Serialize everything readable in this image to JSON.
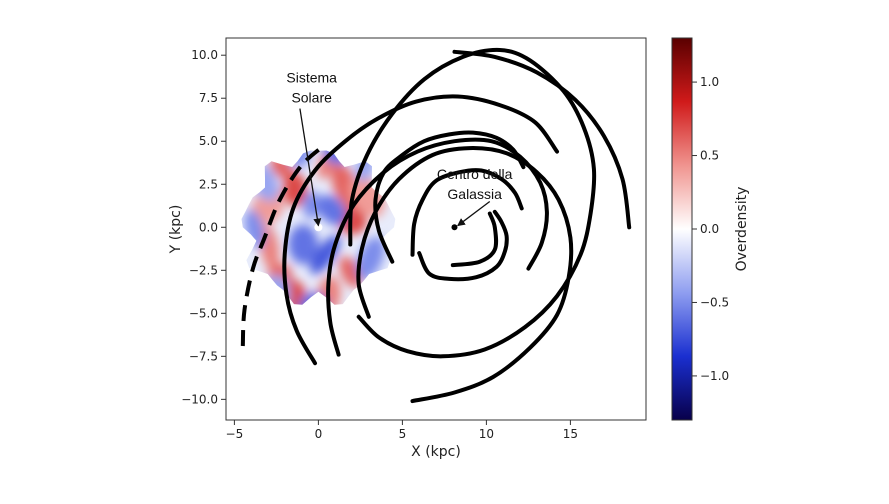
{
  "chart_data": {
    "type": "scatter",
    "title": "",
    "xlabel": "X (kpc)",
    "ylabel": "Y (kpc)",
    "xlim": [
      -5.5,
      19.5
    ],
    "ylim": [
      -11.2,
      11.0
    ],
    "x_ticks": [
      -5,
      0,
      5,
      10,
      15
    ],
    "x_tick_labels": [
      "−5",
      "0",
      "5",
      "10",
      "15"
    ],
    "y_ticks": [
      10.0,
      7.5,
      5.0,
      2.5,
      0.0,
      -2.5,
      -5.0,
      -7.5,
      -10.0
    ],
    "y_tick_labels": [
      "10.0",
      "7.5",
      "5.0",
      "2.5",
      "0.0",
      "−2.5",
      "−5.0",
      "−7.5",
      "−10.0"
    ],
    "grid": false,
    "colorbar": {
      "label": "Overdensity",
      "range": [
        -1.3,
        1.3
      ],
      "ticks": [
        1.0,
        0.5,
        0.0,
        -0.5,
        -1.0
      ],
      "tick_labels": [
        "1.0",
        "0.5",
        "0.0",
        "−0.5",
        "−1.0"
      ],
      "colormap": [
        "#08004a",
        "#1a2fd0",
        "#8f9ef0",
        "#ffffff",
        "#f0948f",
        "#d01a1a",
        "#5a0000"
      ]
    },
    "sun": {
      "x": 0.0,
      "y": 0.0
    },
    "galactic_center": {
      "x": 8.1,
      "y": 0.0
    },
    "annotations": [
      {
        "id": "sun",
        "lines": [
          "Sistema",
          "Solare"
        ],
        "text_x": -0.4,
        "text_y": 8.4,
        "arrow_from": [
          -1.1,
          6.9
        ],
        "arrow_to": [
          0.0,
          0.1
        ]
      },
      {
        "id": "center",
        "lines": [
          "Centro della",
          "Galassia"
        ],
        "text_x": 9.3,
        "text_y": 2.8,
        "arrow_from": [
          10.2,
          1.5
        ],
        "arrow_to": [
          8.3,
          0.1
        ]
      }
    ],
    "spiral_arms": [
      {
        "name": "arm-outer-dashed",
        "style": "dashed",
        "points": [
          [
            -4.5,
            -6.9
          ],
          [
            -4.4,
            -4.8
          ],
          [
            -3.9,
            -2.4
          ],
          [
            -3.2,
            -0.6
          ],
          [
            -2.3,
            1.6
          ],
          [
            -1.0,
            3.6
          ],
          [
            0.4,
            4.8
          ]
        ]
      },
      {
        "name": "arm-1",
        "style": "solid",
        "points": [
          [
            -0.2,
            -7.9
          ],
          [
            -1.3,
            -6.0
          ],
          [
            -1.9,
            -3.9
          ],
          [
            -2.0,
            -1.5
          ],
          [
            -1.5,
            1.1
          ],
          [
            -0.2,
            3.3
          ],
          [
            1.6,
            5.0
          ],
          [
            3.5,
            6.3
          ],
          [
            5.8,
            7.3
          ],
          [
            8.3,
            7.6
          ],
          [
            10.8,
            7.1
          ],
          [
            12.9,
            6.1
          ],
          [
            14.2,
            4.4
          ]
        ]
      },
      {
        "name": "arm-2",
        "style": "solid",
        "points": [
          [
            4.4,
            -2.0
          ],
          [
            3.6,
            -0.2
          ],
          [
            3.4,
            1.6
          ],
          [
            3.9,
            3.2
          ],
          [
            5.0,
            4.2
          ],
          [
            6.3,
            5.0
          ],
          [
            7.8,
            5.4
          ],
          [
            9.2,
            5.5
          ],
          [
            10.6,
            5.2
          ],
          [
            11.6,
            4.5
          ],
          [
            12.2,
            3.5
          ]
        ]
      },
      {
        "name": "arm-3",
        "style": "solid",
        "points": [
          [
            5.6,
            -1.6
          ],
          [
            5.7,
            0.2
          ],
          [
            6.2,
            1.6
          ],
          [
            7.0,
            2.7
          ],
          [
            8.4,
            3.2
          ],
          [
            9.7,
            3.3
          ],
          [
            10.9,
            2.8
          ],
          [
            11.7,
            2.0
          ],
          [
            12.1,
            1.1
          ]
        ]
      },
      {
        "name": "arm-4",
        "style": "solid",
        "points": [
          [
            6.0,
            -1.5
          ],
          [
            6.6,
            -2.7
          ],
          [
            7.8,
            -3.0
          ],
          [
            9.4,
            -2.9
          ],
          [
            10.6,
            -2.3
          ],
          [
            11.1,
            -1.4
          ],
          [
            11.2,
            -0.5
          ],
          [
            10.9,
            0.3
          ],
          [
            10.5,
            0.9
          ]
        ]
      },
      {
        "name": "arm-5",
        "style": "solid",
        "points": [
          [
            8.0,
            -2.2
          ],
          [
            9.6,
            -2.0
          ],
          [
            10.5,
            -1.3
          ],
          [
            10.5,
            0.0
          ],
          [
            10.2,
            0.8
          ]
        ]
      },
      {
        "name": "arm-6",
        "style": "solid",
        "points": [
          [
            1.2,
            -7.4
          ],
          [
            0.7,
            -5.5
          ],
          [
            0.6,
            -3.2
          ],
          [
            1.0,
            -1.0
          ],
          [
            2.1,
            1.3
          ],
          [
            3.9,
            3.2
          ],
          [
            5.9,
            4.4
          ],
          [
            8.1,
            5.0
          ],
          [
            10.3,
            5.0
          ],
          [
            12.0,
            4.1
          ],
          [
            13.2,
            2.6
          ],
          [
            13.6,
            0.9
          ],
          [
            13.3,
            -0.9
          ],
          [
            12.5,
            -2.4
          ]
        ]
      },
      {
        "name": "arm-7",
        "style": "solid",
        "points": [
          [
            3.0,
            -5.2
          ],
          [
            2.4,
            -3.3
          ],
          [
            2.6,
            -1.2
          ],
          [
            3.4,
            0.9
          ],
          [
            4.8,
            2.8
          ],
          [
            6.8,
            4.2
          ],
          [
            9.0,
            4.6
          ],
          [
            11.2,
            4.3
          ],
          [
            13.0,
            3.2
          ],
          [
            14.3,
            1.6
          ],
          [
            15.0,
            -0.6
          ],
          [
            14.9,
            -2.9
          ],
          [
            14.2,
            -5.1
          ],
          [
            12.6,
            -7.0
          ],
          [
            10.4,
            -8.7
          ],
          [
            8.1,
            -9.6
          ],
          [
            5.6,
            -10.1
          ]
        ]
      },
      {
        "name": "arm-8",
        "style": "solid",
        "points": [
          [
            1.9,
            -1.0
          ],
          [
            2.0,
            1.6
          ],
          [
            2.9,
            4.2
          ],
          [
            4.4,
            6.6
          ],
          [
            6.3,
            8.6
          ],
          [
            8.6,
            9.9
          ],
          [
            10.8,
            10.3
          ],
          [
            12.6,
            9.7
          ],
          [
            14.6,
            7.9
          ],
          [
            15.8,
            5.8
          ],
          [
            16.4,
            3.4
          ],
          [
            16.2,
            0.8
          ],
          [
            15.6,
            -1.6
          ],
          [
            14.2,
            -4.0
          ],
          [
            12.3,
            -5.8
          ],
          [
            9.9,
            -7.1
          ],
          [
            7.4,
            -7.5
          ],
          [
            5.3,
            -7.2
          ],
          [
            3.6,
            -6.4
          ],
          [
            2.4,
            -5.2
          ]
        ]
      },
      {
        "name": "arm-9",
        "style": "solid",
        "points": [
          [
            8.1,
            10.2
          ],
          [
            10.5,
            9.9
          ],
          [
            13.0,
            9.0
          ],
          [
            15.3,
            7.4
          ],
          [
            17.0,
            5.3
          ],
          [
            18.1,
            2.8
          ],
          [
            18.5,
            0.0
          ]
        ]
      }
    ],
    "overdensity_patches": [
      {
        "x": -2.2,
        "y": 3.5,
        "value": 0.6
      },
      {
        "x": -1.4,
        "y": 2.2,
        "value": 0.7
      },
      {
        "x": -3.0,
        "y": 1.2,
        "value": 0.4
      },
      {
        "x": -2.9,
        "y": -1.2,
        "value": 0.5
      },
      {
        "x": -2.3,
        "y": -2.9,
        "value": 0.6
      },
      {
        "x": -1.6,
        "y": -4.0,
        "value": 0.7
      },
      {
        "x": 0.6,
        "y": 3.9,
        "value": 0.5
      },
      {
        "x": 1.6,
        "y": 2.4,
        "value": 0.6
      },
      {
        "x": 2.0,
        "y": 0.4,
        "value": 0.7
      },
      {
        "x": 1.9,
        "y": -2.6,
        "value": 0.6
      },
      {
        "x": 0.6,
        "y": -4.0,
        "value": 0.5
      },
      {
        "x": 2.9,
        "y": 1.8,
        "value": 0.4
      },
      {
        "x": -0.4,
        "y": 1.3,
        "value": -0.5
      },
      {
        "x": 0.8,
        "y": 1.0,
        "value": -0.6
      },
      {
        "x": -0.9,
        "y": -1.0,
        "value": -0.6
      },
      {
        "x": 0.4,
        "y": -1.6,
        "value": -0.7
      },
      {
        "x": -1.2,
        "y": 4.3,
        "value": -0.5
      },
      {
        "x": 1.2,
        "y": 4.6,
        "value": -0.6
      },
      {
        "x": -3.8,
        "y": -0.1,
        "value": -0.5
      },
      {
        "x": 3.1,
        "y": -1.8,
        "value": -0.5
      },
      {
        "x": -0.3,
        "y": -4.6,
        "value": -0.6
      },
      {
        "x": 2.8,
        "y": 3.6,
        "value": -0.4
      },
      {
        "x": -3.2,
        "y": 2.6,
        "value": -0.4
      },
      {
        "x": -2.6,
        "y": -4.1,
        "value": -0.4
      }
    ]
  }
}
